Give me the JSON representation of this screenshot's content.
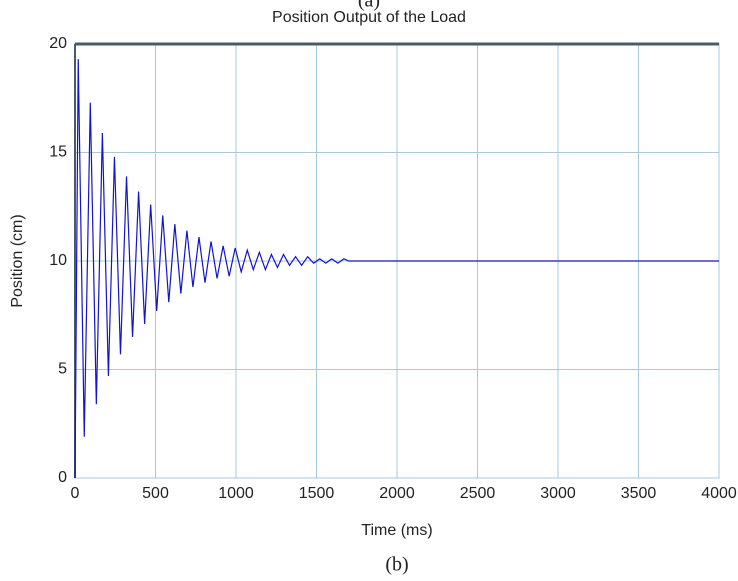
{
  "caption_above": "(a)",
  "caption": "(b)",
  "chart_data": {
    "type": "line",
    "title": "Position Output of the Load",
    "x_label": "Time (ms)",
    "y_label": "Position (cm)",
    "xlim": [
      0,
      4000
    ],
    "ylim": [
      0,
      20
    ],
    "xticks": [
      0,
      500,
      1000,
      1500,
      2000,
      2500,
      3000,
      3500,
      4000
    ],
    "yticks": [
      0,
      5,
      10,
      15,
      20
    ],
    "grid": true,
    "series": [
      {
        "color": "#1414c8",
        "x": [
          0,
          20,
          57.5,
          95,
          132.5,
          170,
          207.5,
          245,
          282.5,
          320,
          357.5,
          395,
          432.5,
          470,
          507.5,
          545,
          582.5,
          620,
          657.5,
          695,
          732.5,
          770,
          807.5,
          845,
          882.5,
          920,
          957.5,
          995,
          1032.5,
          1070,
          1107.5,
          1145,
          1182.5,
          1220,
          1257.5,
          1295,
          1332.5,
          1370,
          1407.5,
          1445,
          1482.5,
          1520,
          1557.5,
          1595,
          1632.5,
          1670,
          1700,
          4000
        ],
        "values": [
          0,
          19.3,
          1.9,
          17.3,
          3.4,
          15.9,
          4.7,
          14.8,
          5.7,
          13.9,
          6.5,
          13.2,
          7.1,
          12.6,
          7.7,
          12.1,
          8.1,
          11.7,
          8.5,
          11.4,
          8.8,
          11.1,
          9.0,
          10.9,
          9.2,
          10.7,
          9.3,
          10.6,
          9.5,
          10.5,
          9.6,
          10.4,
          9.6,
          10.3,
          9.7,
          10.3,
          9.8,
          10.2,
          9.8,
          10.2,
          9.9,
          10.1,
          9.9,
          10.1,
          9.9,
          10.1,
          10,
          10
        ]
      }
    ]
  }
}
